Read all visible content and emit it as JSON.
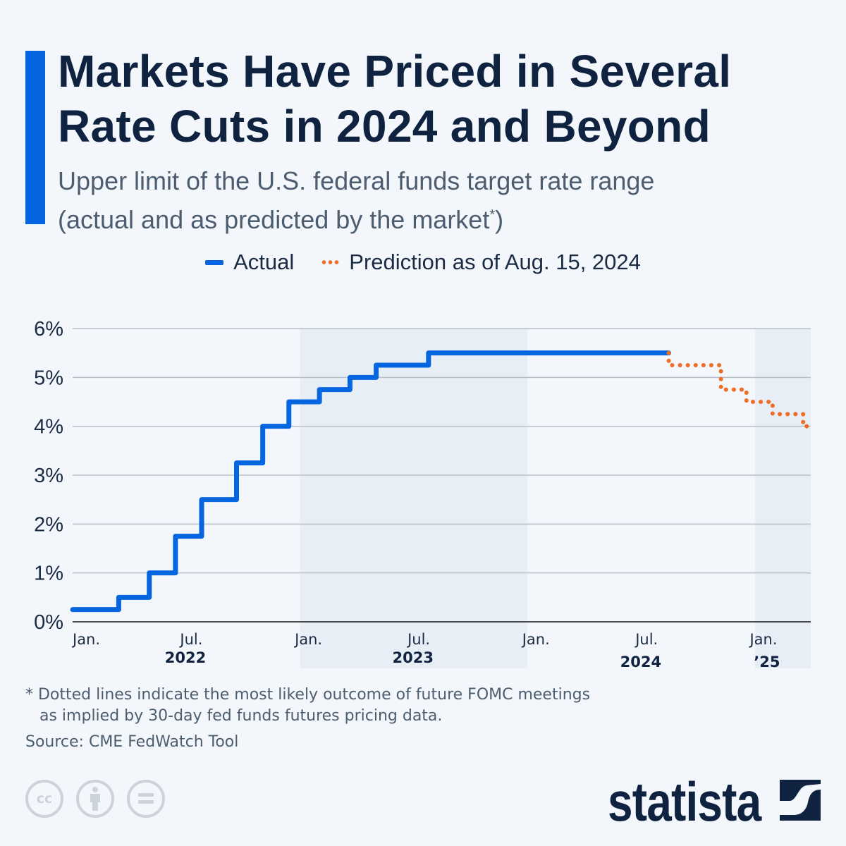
{
  "header": {
    "title_line1": "Markets Have Priced in Several",
    "title_line2": "Rate Cuts in 2024 and Beyond",
    "subtitle_line1": "Upper limit of the U.S. federal funds target rate range",
    "subtitle_line2": "(actual and as predicted by the market",
    "subtitle_asterisk": "*",
    "subtitle_close": ")"
  },
  "colors": {
    "accent": "#0666e0",
    "actual": "#0666e0",
    "prediction": "#ee6c25",
    "title": "#0f2341",
    "background": "#f3f7fb"
  },
  "chart_data": {
    "type": "line",
    "title": "Markets Have Priced in Several Rate Cuts in 2024 and Beyond",
    "ylabel": "Upper limit of federal funds target rate (%)",
    "ylim": [
      0,
      6
    ],
    "yticks": [
      0,
      1,
      2,
      3,
      4,
      5,
      6
    ],
    "ytick_labels": [
      "0%",
      "1%",
      "2%",
      "3%",
      "4%",
      "5%",
      "6%"
    ],
    "xlim": [
      "2022-01-01",
      "2025-03-31"
    ],
    "xticks": [
      {
        "date": "2022-01-15",
        "label": "Jan."
      },
      {
        "date": "2022-07-15",
        "label": "Jul."
      },
      {
        "date": "2023-01-15",
        "label": "Jan."
      },
      {
        "date": "2023-07-15",
        "label": "Jul."
      },
      {
        "date": "2024-01-15",
        "label": "Jan."
      },
      {
        "date": "2024-07-15",
        "label": "Jul."
      },
      {
        "date": "2025-01-15",
        "label": "Jan."
      }
    ],
    "year_labels": [
      {
        "date": "2022-07-01",
        "label": "2022"
      },
      {
        "date": "2023-07-01",
        "label": "2023"
      },
      {
        "date": "2024-07-01",
        "label": "2024"
      },
      {
        "date": "2025-01-20",
        "label": "’25"
      }
    ],
    "shaded_years": [
      2023,
      2025
    ],
    "grid": true,
    "legend": {
      "position": "top-center",
      "entries": [
        "Actual",
        "Prediction as of Aug. 15, 2024"
      ]
    },
    "series": [
      {
        "name": "Actual",
        "style": "solid-step",
        "points": [
          [
            "2022-01-01",
            0.25
          ],
          [
            "2022-03-16",
            0.5
          ],
          [
            "2022-05-04",
            1.0
          ],
          [
            "2022-06-15",
            1.75
          ],
          [
            "2022-07-27",
            2.5
          ],
          [
            "2022-09-21",
            3.25
          ],
          [
            "2022-11-02",
            4.0
          ],
          [
            "2022-12-14",
            4.5
          ],
          [
            "2023-02-01",
            4.75
          ],
          [
            "2023-03-22",
            5.0
          ],
          [
            "2023-05-03",
            5.25
          ],
          [
            "2023-07-26",
            5.5
          ],
          [
            "2024-08-15",
            5.5
          ]
        ]
      },
      {
        "name": "Prediction as of Aug. 15, 2024",
        "style": "dotted-step",
        "points": [
          [
            "2024-08-15",
            5.5
          ],
          [
            "2024-08-15",
            5.25
          ],
          [
            "2024-11-07",
            4.75
          ],
          [
            "2024-12-18",
            4.5
          ],
          [
            "2025-01-29",
            4.25
          ],
          [
            "2025-03-19",
            4.0
          ],
          [
            "2025-03-31",
            4.0
          ]
        ]
      }
    ]
  },
  "footer": {
    "note_line1": "* Dotted lines indicate the most likely outcome of future FOMC meetings",
    "note_line2": "as implied by 30-day fed funds futures pricing data.",
    "source": "Source: CME FedWatch Tool",
    "brand": "statista",
    "license_icons": [
      "cc-icon",
      "attribution-icon",
      "no-derivatives-icon"
    ]
  }
}
